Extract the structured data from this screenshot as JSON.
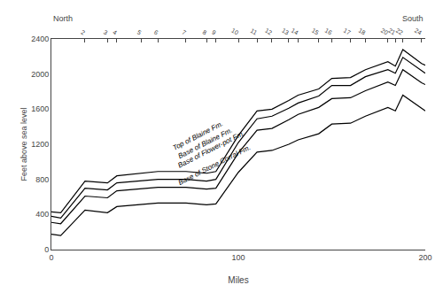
{
  "chart_data": {
    "type": "line",
    "xlabel": "Miles",
    "ylabel": "Feet above sea level",
    "x": [
      0,
      5,
      18,
      30,
      35,
      48,
      57,
      72,
      83,
      88,
      100,
      110,
      118,
      127,
      132,
      143,
      150,
      160,
      168,
      180,
      184,
      188,
      198,
      200
    ],
    "series": [
      {
        "color": "#000000",
        "values": [
          430,
          420,
          780,
          760,
          840,
          870,
          890,
          890,
          870,
          890,
          1300,
          1580,
          1600,
          1700,
          1760,
          1830,
          1950,
          1960,
          2050,
          2140,
          2090,
          2280,
          2120,
          2100
        ]
      },
      {
        "color": "#000000",
        "values": [
          380,
          360,
          700,
          680,
          760,
          780,
          800,
          800,
          780,
          800,
          1220,
          1490,
          1520,
          1610,
          1670,
          1750,
          1870,
          1870,
          1970,
          2050,
          2010,
          2190,
          2040,
          2010
        ]
      },
      {
        "color": "#000000",
        "values": [
          310,
          295,
          610,
          590,
          670,
          690,
          710,
          710,
          690,
          700,
          1100,
          1360,
          1380,
          1480,
          1540,
          1620,
          1720,
          1730,
          1810,
          1910,
          1870,
          2050,
          1900,
          1880
        ]
      },
      {
        "color": "#000000",
        "values": [
          175,
          160,
          450,
          420,
          490,
          510,
          530,
          530,
          510,
          520,
          880,
          1110,
          1130,
          1200,
          1250,
          1320,
          1430,
          1440,
          1520,
          1620,
          1580,
          1760,
          1610,
          1580
        ]
      }
    ],
    "annotations": [
      {
        "text": "Top of Blaine Fm.",
        "x": 63,
        "y": 1090
      },
      {
        "text": "Base of Blaine Fm.",
        "x": 66,
        "y": 990
      },
      {
        "text": "Base of Flower-pot Fm.",
        "x": 66,
        "y": 885
      },
      {
        "text": "Base of Stone Corral Fm.",
        "x": 66,
        "y": 690
      }
    ],
    "left_label": "North",
    "right_label": "South",
    "xlim": [
      0,
      200
    ],
    "xticks": [
      0,
      100,
      200
    ],
    "ylim": [
      0,
      2400
    ],
    "yticks": [
      0,
      400,
      800,
      1200,
      1600,
      2000,
      2400
    ],
    "x2lim": [
      0,
      200
    ],
    "x2ticks": [
      {
        "value": 18,
        "label": "2"
      },
      {
        "value": 30,
        "label": "3"
      },
      {
        "value": 35,
        "label": "4"
      },
      {
        "value": 48,
        "label": "5"
      },
      {
        "value": 57,
        "label": "6"
      },
      {
        "value": 72,
        "label": "7"
      },
      {
        "value": 83,
        "label": "8"
      },
      {
        "value": 88,
        "label": "9"
      },
      {
        "value": 100,
        "label": "10"
      },
      {
        "value": 110,
        "label": "11"
      },
      {
        "value": 118,
        "label": "12"
      },
      {
        "value": 127,
        "label": "13"
      },
      {
        "value": 132,
        "label": "14"
      },
      {
        "value": 143,
        "label": "15"
      },
      {
        "value": 150,
        "label": "16"
      },
      {
        "value": 160,
        "label": "17"
      },
      {
        "value": 168,
        "label": "18"
      },
      {
        "value": 180,
        "label": "20"
      },
      {
        "value": 184,
        "label": "21"
      },
      {
        "value": 188,
        "label": "22"
      },
      {
        "value": 198,
        "label": "24"
      }
    ],
    "grid": false
  }
}
